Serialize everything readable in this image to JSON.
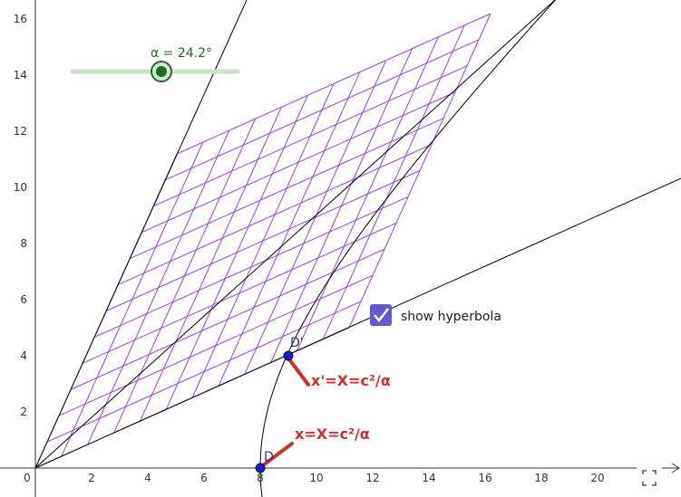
{
  "x_axis": {
    "ticks": [
      0,
      2,
      4,
      6,
      8,
      10,
      12,
      14,
      16,
      18,
      20
    ]
  },
  "y_axis": {
    "ticks": [
      2,
      4,
      6,
      8,
      10,
      12,
      14,
      16
    ]
  },
  "slider": {
    "label": "α = 24.2°"
  },
  "checkbox": {
    "label": "show hyperbola"
  },
  "points": [
    {
      "label": "D"
    },
    {
      "label": "D'"
    }
  ],
  "annotations": [
    "x'=X=c²/α",
    "x=X=c²/α"
  ]
}
